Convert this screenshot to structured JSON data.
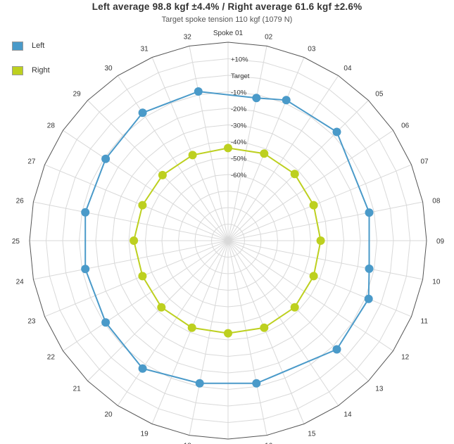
{
  "chart_data": {
    "type": "radar",
    "title": "Left average 98.8 kgf ±4.4% / Right average 61.6 kgf ±2.6%",
    "subtitle": "Target spoke tension 110 kgf (1079 N)",
    "spoke_label_prefix": "Spoke ",
    "categories": [
      "01",
      "02",
      "03",
      "04",
      "05",
      "06",
      "07",
      "08",
      "09",
      "10",
      "11",
      "12",
      "13",
      "14",
      "15",
      "16",
      "17",
      "18",
      "19",
      "20",
      "21",
      "22",
      "23",
      "24",
      "25",
      "26",
      "27",
      "28",
      "29",
      "30",
      "31",
      "32"
    ],
    "radial_ticks": [
      {
        "value": 10,
        "label": "+10%"
      },
      {
        "value": 0,
        "label": "Target"
      },
      {
        "value": -10,
        "label": "-10%"
      },
      {
        "value": -20,
        "label": "-20%"
      },
      {
        "value": -30,
        "label": "-30%"
      },
      {
        "value": -40,
        "label": "-40%"
      },
      {
        "value": -50,
        "label": "-50%"
      },
      {
        "value": -60,
        "label": "-60%"
      }
    ],
    "rlim": [
      -100,
      20
    ],
    "grid": true,
    "legend_position": "top-left",
    "series": [
      {
        "name": "Left",
        "color": "#4a9ac9",
        "marker": "circle",
        "closed": true,
        "values": [
          null,
          -12,
          -8,
          null,
          -7,
          null,
          null,
          -13,
          null,
          -13,
          -8,
          null,
          -7,
          null,
          null,
          -12,
          null,
          -12,
          null,
          -7,
          null,
          -11,
          null,
          -12,
          null,
          -12,
          null,
          -11,
          null,
          -7,
          null,
          -8
        ]
      },
      {
        "name": "Right",
        "color": "#bdd01f",
        "marker": "circle",
        "closed": true,
        "values": [
          -44,
          null,
          -43,
          null,
          -43,
          null,
          -44,
          null,
          -44,
          null,
          -44,
          null,
          -43,
          null,
          -43,
          null,
          -44,
          null,
          -43,
          null,
          -43,
          null,
          -44,
          null,
          -43,
          null,
          -44,
          null,
          -44,
          null,
          -44,
          null
        ]
      }
    ]
  },
  "legend": {
    "items": [
      {
        "label": "Left",
        "color": "#4a9ac9"
      },
      {
        "label": "Right",
        "color": "#bdd01f"
      }
    ]
  },
  "colors": {
    "grid_line": "#d9d9d9",
    "outer_border": "#555555",
    "label_text": "#333333",
    "tick_text": "#333333"
  }
}
